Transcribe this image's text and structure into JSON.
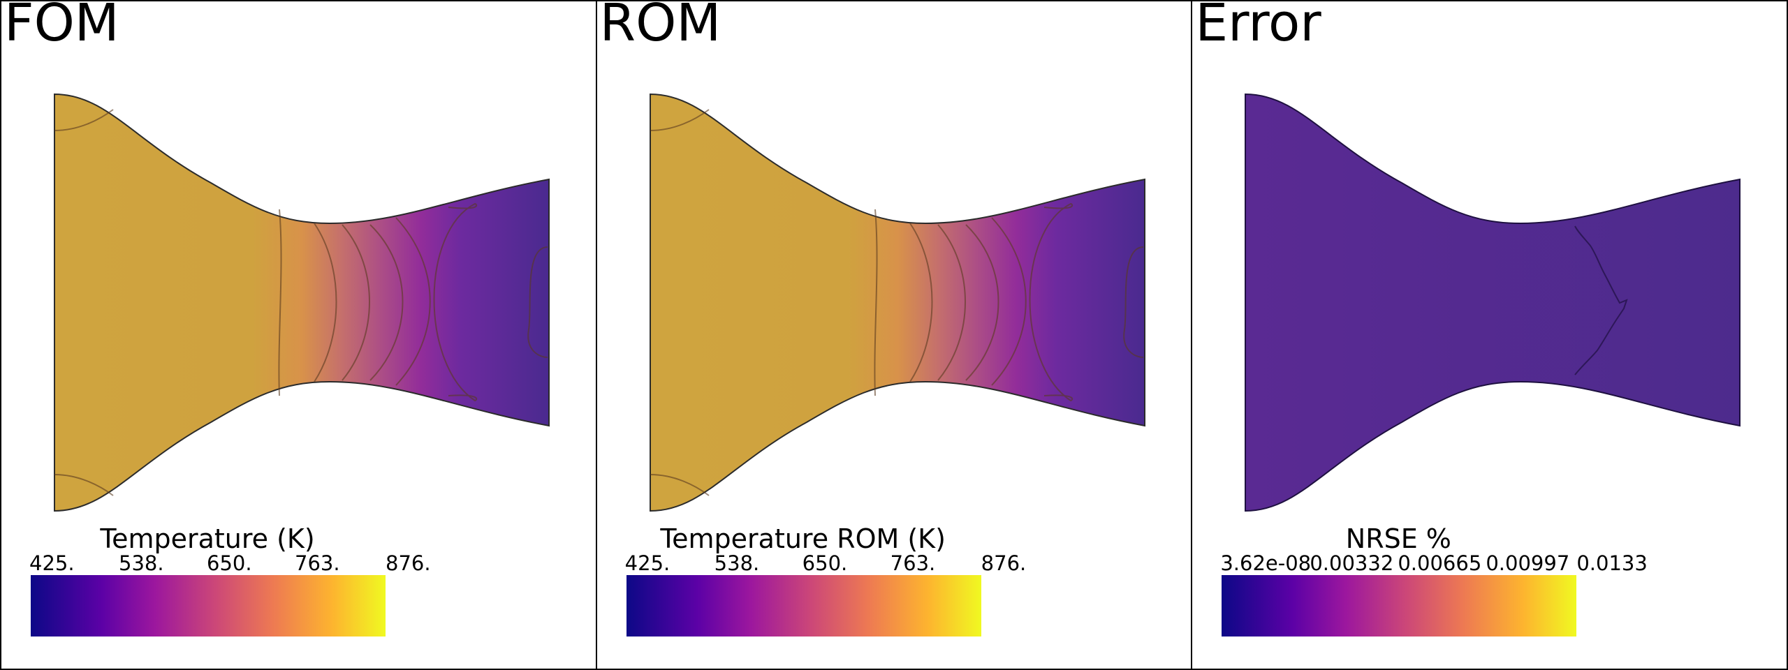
{
  "panels": [
    {
      "title": "FOM",
      "colorbar": {
        "title": "Temperature (K)",
        "ticks": [
          "425.",
          "538.",
          "650.",
          "763.",
          "876."
        ]
      }
    },
    {
      "title": "ROM",
      "colorbar": {
        "title": "Temperature ROM (K)",
        "ticks": [
          "425.",
          "538.",
          "650.",
          "763.",
          "876."
        ]
      }
    },
    {
      "title": "Error",
      "colorbar": {
        "title": "NRSE %",
        "ticks": [
          "3.62e-08",
          "0.00332",
          "0.00665",
          "0.00997",
          "0.0133"
        ]
      }
    }
  ],
  "colors": {
    "hot": "#cfa43f",
    "cool": "#4a2a8f",
    "error_fill": "#5a2a93",
    "colormap": "plasma"
  }
}
